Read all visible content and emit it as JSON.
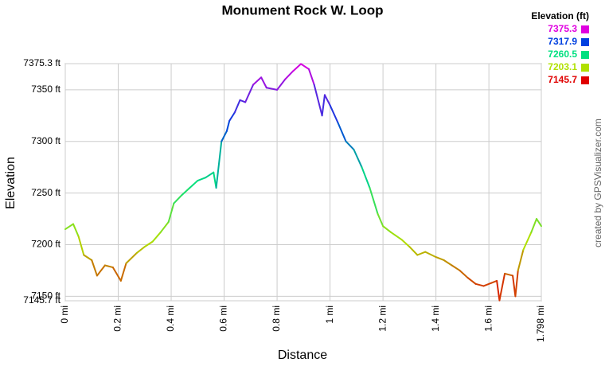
{
  "chart_data": {
    "type": "line",
    "title": "Monument Rock W. Loop",
    "x_label": "Distance",
    "y_label": "Elevation",
    "credit": "created by GPSVisualizer.com",
    "legend_title": "Elevation (ft)",
    "color_scale": [
      {
        "value": 7375.3,
        "color": "#e000e0"
      },
      {
        "value": 7317.9,
        "color": "#0040e0"
      },
      {
        "value": 7260.5,
        "color": "#00e080"
      },
      {
        "value": 7203.1,
        "color": "#b0e000"
      },
      {
        "value": 7145.7,
        "color": "#e00000"
      }
    ],
    "x": [
      0,
      0.03,
      0.05,
      0.07,
      0.1,
      0.12,
      0.15,
      0.18,
      0.21,
      0.23,
      0.27,
      0.3,
      0.33,
      0.36,
      0.39,
      0.41,
      0.44,
      0.47,
      0.5,
      0.53,
      0.56,
      0.57,
      0.59,
      0.61,
      0.62,
      0.64,
      0.66,
      0.68,
      0.71,
      0.74,
      0.76,
      0.8,
      0.83,
      0.86,
      0.89,
      0.92,
      0.94,
      0.97,
      0.98,
      1.0,
      1.03,
      1.06,
      1.09,
      1.12,
      1.15,
      1.18,
      1.2,
      1.23,
      1.27,
      1.3,
      1.33,
      1.36,
      1.4,
      1.43,
      1.46,
      1.49,
      1.52,
      1.55,
      1.58,
      1.61,
      1.63,
      1.64,
      1.66,
      1.69,
      1.7,
      1.71,
      1.73,
      1.76,
      1.78,
      1.798
    ],
    "values": [
      7215,
      7220,
      7208,
      7190,
      7185,
      7170,
      7180,
      7178,
      7165,
      7182,
      7192,
      7198,
      7203,
      7212,
      7222,
      7240,
      7248,
      7255,
      7262,
      7265,
      7270,
      7255,
      7300,
      7310,
      7320,
      7328,
      7340,
      7338,
      7355,
      7362,
      7352,
      7350,
      7360,
      7368,
      7375,
      7370,
      7355,
      7325,
      7345,
      7335,
      7318,
      7300,
      7292,
      7275,
      7255,
      7230,
      7218,
      7212,
      7205,
      7198,
      7190,
      7193,
      7188,
      7185,
      7180,
      7175,
      7168,
      7162,
      7160,
      7163,
      7165,
      7146,
      7172,
      7170,
      7150,
      7175,
      7195,
      7212,
      7225,
      7218
    ],
    "xlim": [
      0,
      1.798
    ],
    "ylim": [
      7145.7,
      7375.3
    ],
    "xticks": [
      {
        "value": 0,
        "label": "0 mi"
      },
      {
        "value": 0.2,
        "label": "0.2 mi"
      },
      {
        "value": 0.4,
        "label": "0.4 mi"
      },
      {
        "value": 0.6,
        "label": "0.6 mi"
      },
      {
        "value": 0.8,
        "label": "0.8 mi"
      },
      {
        "value": 1,
        "label": "1 mi"
      },
      {
        "value": 1.2,
        "label": "1.2 mi"
      },
      {
        "value": 1.4,
        "label": "1.4 mi"
      },
      {
        "value": 1.6,
        "label": "1.6 mi"
      },
      {
        "value": 1.798,
        "label": "1.798 mi"
      }
    ],
    "yticks": [
      {
        "value": 7145.7,
        "label": "7145.7 ft"
      },
      {
        "value": 7150,
        "label": "7150 ft"
      },
      {
        "value": 7200,
        "label": "7200 ft"
      },
      {
        "value": 7250,
        "label": "7250 ft"
      },
      {
        "value": 7300,
        "label": "7300 ft"
      },
      {
        "value": 7350,
        "label": "7350 ft"
      },
      {
        "value": 7375.3,
        "label": "7375.3 ft"
      }
    ],
    "grid": true
  }
}
